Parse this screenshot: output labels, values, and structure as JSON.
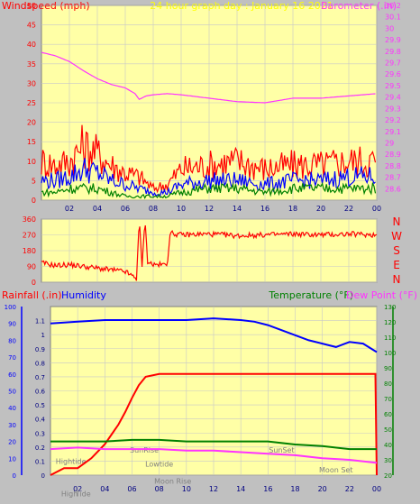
{
  "header": {
    "left_title": "Windspeed (mph)",
    "center_title": "24 hour graph day : January 16 2021",
    "right_title": "Barometer (.in)"
  },
  "colors": {
    "panel_bg": "#ffffa6",
    "frame_bg": "#c0c0c0",
    "red": "#ff0000",
    "blue": "#0000ff",
    "green": "#008000",
    "magenta": "#ff33ff",
    "grid": "#c8c8c8",
    "title_yellow": "#ffff00"
  },
  "chart_data": [
    {
      "type": "line",
      "id": "wind_barometer",
      "title": "Windspeed (mph)",
      "right_title": "Barometer (.in)",
      "x_ticks": [
        "02",
        "04",
        "06",
        "08",
        "10",
        "12",
        "14",
        "16",
        "18",
        "20",
        "22",
        "00"
      ],
      "ylim_left": [
        0,
        50
      ],
      "y_ticks_left": [
        "0",
        "5",
        "10",
        "15",
        "20",
        "25",
        "30",
        "35",
        "40",
        "45",
        "50"
      ],
      "ylim_right": [
        28.5,
        30.2
      ],
      "y_ticks_right": [
        "28.6",
        "28.7",
        "28.8",
        "28.9",
        "29",
        "29.1",
        "29.2",
        "29.3",
        "29.4",
        "29.5",
        "29.6",
        "29.7",
        "29.8",
        "29.9",
        "30",
        "30.1",
        "30.2"
      ],
      "series": [
        {
          "axis": "right",
          "color": "#ff33ff",
          "hours": [
            0,
            1,
            2,
            3,
            4,
            5,
            6,
            6.7,
            7,
            7.5,
            8,
            9,
            10,
            12,
            14,
            16,
            18,
            20,
            22,
            24
          ],
          "values": [
            29.79,
            29.76,
            29.71,
            29.63,
            29.56,
            29.51,
            29.48,
            29.43,
            29.38,
            29.41,
            29.42,
            29.43,
            29.42,
            29.39,
            29.36,
            29.35,
            29.39,
            29.39,
            29.41,
            29.43
          ]
        },
        {
          "axis": "left",
          "color": "#ff0000",
          "hours": [
            0,
            1,
            2,
            3,
            4,
            5,
            6,
            7,
            8,
            9,
            10,
            12,
            14,
            16,
            18,
            20,
            22,
            24
          ],
          "values": [
            10,
            9,
            10,
            14,
            12,
            9,
            7,
            6,
            3,
            4,
            8,
            9,
            10,
            8,
            9,
            9,
            10,
            10
          ]
        },
        {
          "axis": "left",
          "color": "#0000ff",
          "hours": [
            0,
            1,
            2,
            3,
            4,
            5,
            6,
            7,
            8,
            9,
            10,
            12,
            14,
            16,
            18,
            20,
            22,
            24
          ],
          "values": [
            5,
            5,
            6,
            8,
            7,
            5,
            4,
            3,
            2,
            2,
            4,
            5,
            5,
            4,
            5,
            5,
            6,
            6
          ]
        },
        {
          "axis": "left",
          "color": "#008000",
          "hours": [
            0,
            1,
            2,
            3,
            4,
            5,
            6,
            7,
            8,
            9,
            10,
            12,
            14,
            16,
            18,
            20,
            22,
            24
          ],
          "values": [
            2,
            2,
            3,
            3,
            3,
            2,
            1,
            1,
            1,
            1,
            2,
            3,
            3,
            2,
            3,
            3,
            3,
            3
          ]
        }
      ]
    },
    {
      "type": "line",
      "id": "wind_direction",
      "ylim": [
        0,
        360
      ],
      "y_ticks": [
        "0",
        "90",
        "180",
        "270",
        "360"
      ],
      "compass_labels": [
        "N",
        "W",
        "S",
        "E",
        "N"
      ],
      "x_ticks": [
        "02",
        "04",
        "06",
        "08",
        "10",
        "12",
        "14",
        "16",
        "18",
        "20",
        "22",
        "00"
      ],
      "series": [
        {
          "color": "#ff0000",
          "hours": [
            0,
            1,
            2,
            3,
            4,
            5,
            6,
            6.8,
            7,
            7.2,
            7.4,
            7.6,
            8,
            9,
            9.2,
            10,
            12,
            14,
            16,
            18,
            20,
            22,
            24
          ],
          "values": [
            110,
            95,
            100,
            90,
            80,
            70,
            60,
            20,
            360,
            80,
            360,
            120,
            100,
            100,
            280,
            270,
            275,
            265,
            270,
            275,
            270,
            275,
            270
          ]
        }
      ]
    },
    {
      "type": "line",
      "id": "rain_humidity_temp",
      "left_title_1": "Rainfall (.in)",
      "left_title_2": "Humidity",
      "right_title_1": "Temperature (°F)",
      "right_title_2": "Dew Point (°F)",
      "ylim_humidity": [
        0,
        100
      ],
      "y_ticks_humidity": [
        "0",
        "10",
        "20",
        "30",
        "40",
        "50",
        "60",
        "70",
        "80",
        "90",
        "100"
      ],
      "ylim_rain": [
        0,
        1.2
      ],
      "y_ticks_rain": [
        "0",
        "0.1",
        "0.2",
        "0.3",
        "0.4",
        "0.5",
        "0.6",
        "0.7",
        "0.8",
        "0.9",
        "1",
        "1.1"
      ],
      "ylim_temp": [
        20,
        130
      ],
      "y_ticks_temp": [
        "20",
        "30",
        "40",
        "50",
        "60",
        "70",
        "80",
        "90",
        "100",
        "110",
        "120",
        "130"
      ],
      "x_ticks": [
        "02",
        "04",
        "06",
        "08",
        "10",
        "12",
        "14",
        "16",
        "18",
        "20",
        "22",
        "00"
      ],
      "annotations": [
        {
          "label": "Hightide",
          "hour": 1.5,
          "level": 0.08
        },
        {
          "label": "SunRise",
          "hour": 6.9,
          "level": 0.16
        },
        {
          "label": "Lowtide",
          "hour": 8.0,
          "level": 0.06
        },
        {
          "label": "Moon Rise",
          "hour": 9.0,
          "level": -0.06
        },
        {
          "label": "SunSet",
          "hour": 17.0,
          "level": 0.16
        },
        {
          "label": "Moon Set",
          "hour": 21.0,
          "level": 0.02
        },
        {
          "label": "High",
          "hour": 1.4,
          "level": -0.15
        },
        {
          "label": "Tide",
          "hour": 2.4,
          "level": -0.15
        }
      ],
      "series": [
        {
          "axis": "humidity",
          "color": "#0000ff",
          "hours": [
            0,
            2,
            4,
            6,
            8,
            10,
            12,
            14,
            15,
            16,
            17,
            18,
            19,
            20,
            21,
            22,
            23,
            24
          ],
          "values": [
            90,
            91,
            92,
            92,
            92,
            92,
            93,
            92,
            91,
            89,
            86,
            83,
            80,
            78,
            76,
            79,
            78,
            73
          ]
        },
        {
          "axis": "rain",
          "color": "#ff0000",
          "hours": [
            0,
            1,
            2,
            3,
            4,
            5,
            5.5,
            6,
            6.5,
            7,
            8,
            10,
            12,
            14,
            16,
            18,
            20,
            22,
            23.9,
            24
          ],
          "values": [
            0,
            0.05,
            0.05,
            0.12,
            0.22,
            0.36,
            0.45,
            0.55,
            0.64,
            0.7,
            0.72,
            0.72,
            0.72,
            0.72,
            0.72,
            0.72,
            0.72,
            0.72,
            0.72,
            0
          ]
        },
        {
          "axis": "temp",
          "color": "#008000",
          "hours": [
            0,
            2,
            4,
            6,
            8,
            10,
            12,
            14,
            16,
            18,
            20,
            22,
            24
          ],
          "values": [
            42,
            42,
            42,
            43,
            43,
            42,
            42,
            42,
            42,
            40,
            39,
            37,
            37
          ]
        },
        {
          "axis": "temp",
          "color": "#ff33ff",
          "hours": [
            0,
            2,
            4,
            6,
            8,
            10,
            12,
            14,
            16,
            18,
            20,
            22,
            24
          ],
          "values": [
            37,
            38,
            37,
            37,
            37,
            36,
            36,
            35,
            34,
            33,
            31,
            30,
            28
          ]
        }
      ]
    }
  ]
}
